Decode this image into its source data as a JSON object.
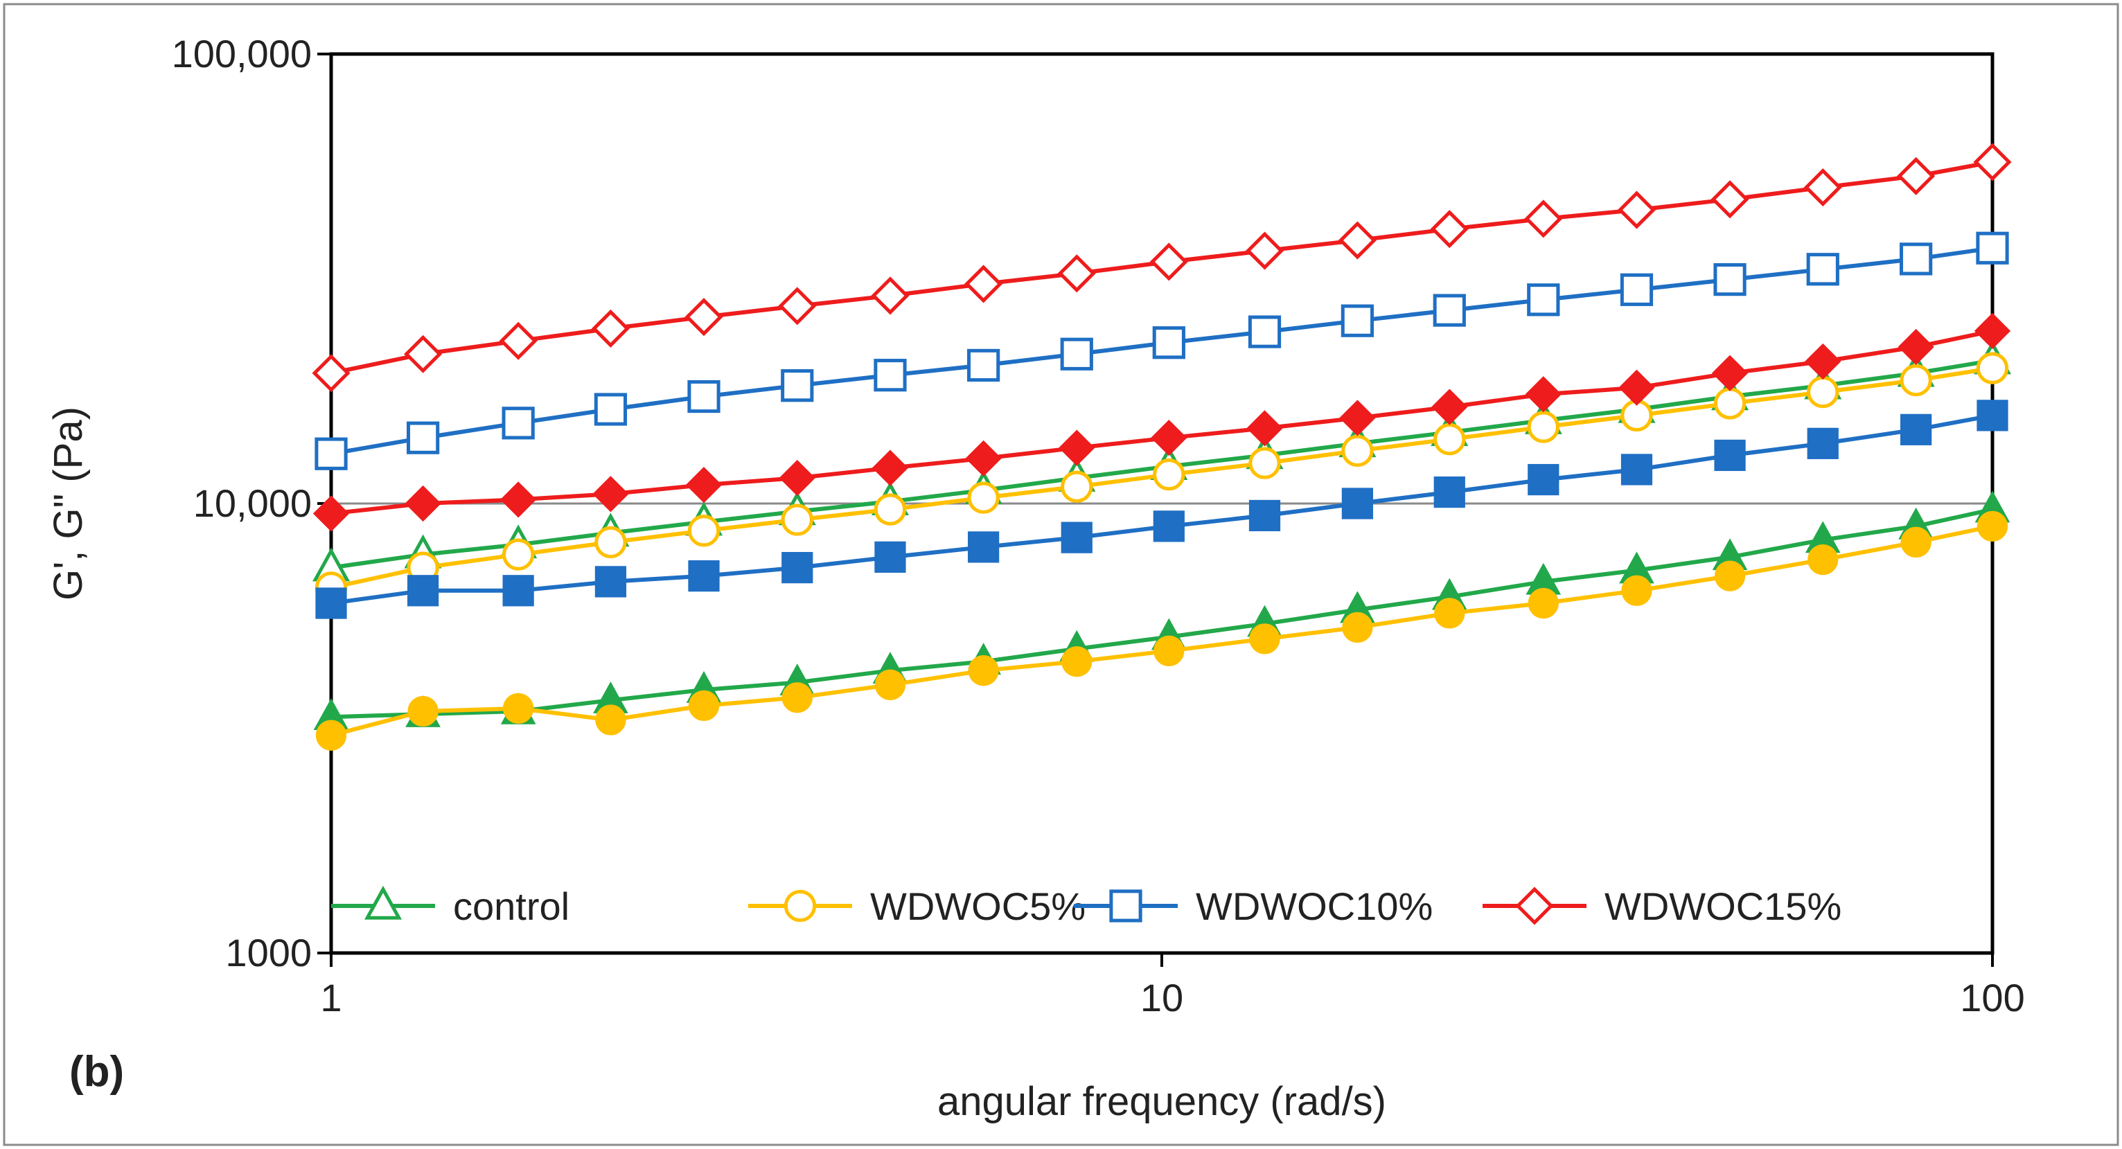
{
  "chart_data": {
    "type": "line",
    "panel_label": "(b)",
    "xlabel": "angular frequency (rad/s)",
    "ylabel": "G', G\" (Pa)",
    "x_scale": "log",
    "y_scale": "log",
    "xlim": [
      1,
      100
    ],
    "ylim": [
      1000,
      100000
    ],
    "x_ticks": [
      {
        "value": 1,
        "label": "1"
      },
      {
        "value": 10,
        "label": "10"
      },
      {
        "value": 100,
        "label": "100"
      }
    ],
    "y_ticks": [
      {
        "value": 1000,
        "label": "1000"
      },
      {
        "value": 10000,
        "label": "10,000"
      },
      {
        "value": 100000,
        "label": "100,000"
      }
    ],
    "grid": "horizontal major",
    "legend_position": "bottom-inside",
    "x": [
      1,
      1.29,
      1.68,
      2.17,
      2.81,
      3.64,
      4.71,
      6.1,
      7.9,
      10.2,
      13.3,
      17.2,
      22.2,
      28.8,
      37.3,
      48.3,
      62.5,
      80.9,
      100
    ],
    "series": [
      {
        "name": "control",
        "modulus": "G'",
        "legend": true,
        "color": "#22A84A",
        "marker": "triangle-open",
        "values": [
          7200,
          7700,
          8100,
          8600,
          9100,
          9600,
          10100,
          10700,
          11400,
          12100,
          12800,
          13600,
          14400,
          15300,
          16200,
          17300,
          18300,
          19500,
          20800
        ]
      },
      {
        "name": "control",
        "modulus": "G\"",
        "legend": false,
        "color": "#22A84A",
        "marker": "triangle-filled",
        "values": [
          3350,
          3400,
          3450,
          3650,
          3850,
          4000,
          4250,
          4450,
          4750,
          5050,
          5400,
          5800,
          6200,
          6700,
          7100,
          7600,
          8300,
          8900,
          9700
        ]
      },
      {
        "name": "WDWOC5%",
        "modulus": "G'",
        "legend": true,
        "color": "#FFC000",
        "marker": "circle-open",
        "values": [
          6500,
          7200,
          7700,
          8200,
          8700,
          9200,
          9700,
          10300,
          10900,
          11600,
          12300,
          13100,
          13900,
          14800,
          15700,
          16700,
          17700,
          18800,
          20000
        ]
      },
      {
        "name": "WDWOC5%",
        "modulus": "G\"",
        "legend": false,
        "color": "#FFC000",
        "marker": "circle-filled",
        "values": [
          3050,
          3450,
          3500,
          3300,
          3550,
          3700,
          3950,
          4250,
          4450,
          4700,
          5000,
          5300,
          5700,
          6000,
          6400,
          6900,
          7500,
          8200,
          8900
        ]
      },
      {
        "name": "WDWOC10%",
        "modulus": "G'",
        "legend": true,
        "color": "#1F6FC4",
        "marker": "square-open",
        "values": [
          12900,
          14000,
          15100,
          16200,
          17300,
          18300,
          19300,
          20300,
          21500,
          22800,
          24100,
          25500,
          26900,
          28400,
          29900,
          31500,
          33200,
          35000,
          37000
        ]
      },
      {
        "name": "WDWOC10%",
        "modulus": "G\"",
        "legend": false,
        "color": "#1F6FC4",
        "marker": "square-filled",
        "values": [
          6000,
          6400,
          6400,
          6700,
          6900,
          7200,
          7600,
          8000,
          8400,
          8900,
          9400,
          10000,
          10600,
          11300,
          11900,
          12800,
          13600,
          14600,
          15700
        ]
      },
      {
        "name": "WDWOC15%",
        "modulus": "G'",
        "legend": true,
        "color": "#EE1C1C",
        "marker": "diamond-open",
        "values": [
          19500,
          21500,
          23000,
          24500,
          26000,
          27500,
          29000,
          30800,
          32500,
          34500,
          36500,
          38500,
          40800,
          43000,
          45000,
          47500,
          50500,
          53500,
          57500
        ]
      },
      {
        "name": "WDWOC15%",
        "modulus": "G\"",
        "legend": false,
        "color": "#EE1C1C",
        "marker": "diamond-filled",
        "values": [
          9500,
          10000,
          10200,
          10500,
          11000,
          11400,
          12000,
          12600,
          13300,
          14000,
          14700,
          15500,
          16400,
          17500,
          18100,
          19500,
          20700,
          22300,
          24200
        ]
      }
    ]
  }
}
